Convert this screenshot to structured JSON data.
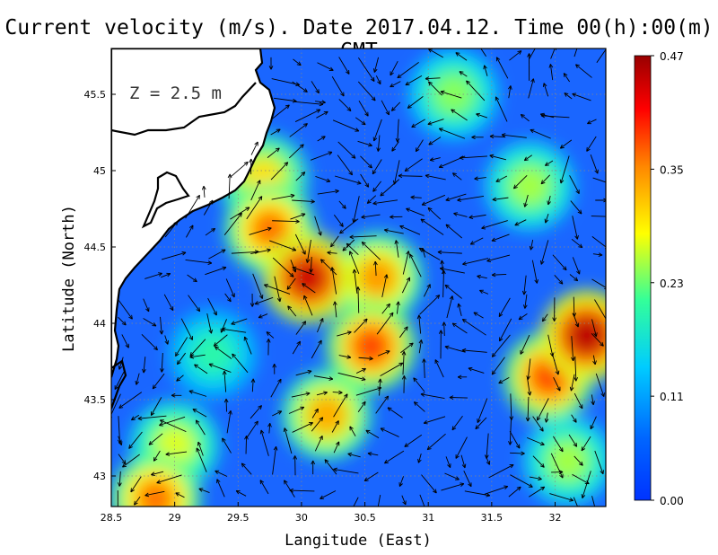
{
  "chart_data": {
    "type": "heatmap",
    "title": "Current velocity (m/s). Date 2017.04.12. Time 00(h):00(m) GMT",
    "xlabel": "Langitude (East)",
    "ylabel": "Latitude (North)",
    "depth_label": "Z = 2.5 m",
    "xlim": [
      28.5,
      32.4
    ],
    "ylim": [
      42.8,
      45.8
    ],
    "x_ticks": [
      "28.5",
      "29",
      "29.5",
      "30",
      "30.5",
      "31",
      "31.5",
      "32"
    ],
    "x_tick_values": [
      28.5,
      29,
      29.5,
      30,
      30.5,
      31,
      31.5,
      32
    ],
    "y_ticks": [
      "43",
      "43.5",
      "44",
      "44.5",
      "45",
      "45.5"
    ],
    "y_tick_values": [
      43,
      43.5,
      44,
      44.5,
      45,
      45.5
    ],
    "grid": true,
    "colorbar": {
      "min": 0.0,
      "max": 0.47,
      "tick_labels": [
        "0.00",
        "0.11",
        "0.23",
        "0.35",
        "0.47"
      ],
      "tick_values": [
        0.0,
        0.11,
        0.23,
        0.35,
        0.47
      ],
      "colors": [
        "#0033ff",
        "#0066ff",
        "#00ccff",
        "#33ff99",
        "#ffff00",
        "#ff8800",
        "#ff0000",
        "#990000"
      ]
    },
    "hotspots": [
      {
        "lon": 30.05,
        "lat": 44.3,
        "speed": 0.44
      },
      {
        "lon": 29.75,
        "lat": 44.62,
        "speed": 0.36
      },
      {
        "lon": 32.25,
        "lat": 43.92,
        "speed": 0.45
      },
      {
        "lon": 31.95,
        "lat": 43.65,
        "speed": 0.38
      },
      {
        "lon": 30.55,
        "lat": 43.85,
        "speed": 0.38
      },
      {
        "lon": 28.85,
        "lat": 42.85,
        "speed": 0.36
      },
      {
        "lon": 29.0,
        "lat": 43.2,
        "speed": 0.27
      },
      {
        "lon": 30.2,
        "lat": 43.4,
        "speed": 0.33
      },
      {
        "lon": 30.6,
        "lat": 44.3,
        "speed": 0.34
      },
      {
        "lon": 31.8,
        "lat": 44.9,
        "speed": 0.25
      },
      {
        "lon": 29.7,
        "lat": 44.95,
        "speed": 0.3
      },
      {
        "lon": 31.2,
        "lat": 45.5,
        "speed": 0.24
      },
      {
        "lon": 32.1,
        "lat": 43.1,
        "speed": 0.25
      },
      {
        "lon": 29.3,
        "lat": 43.8,
        "speed": 0.2
      }
    ]
  }
}
